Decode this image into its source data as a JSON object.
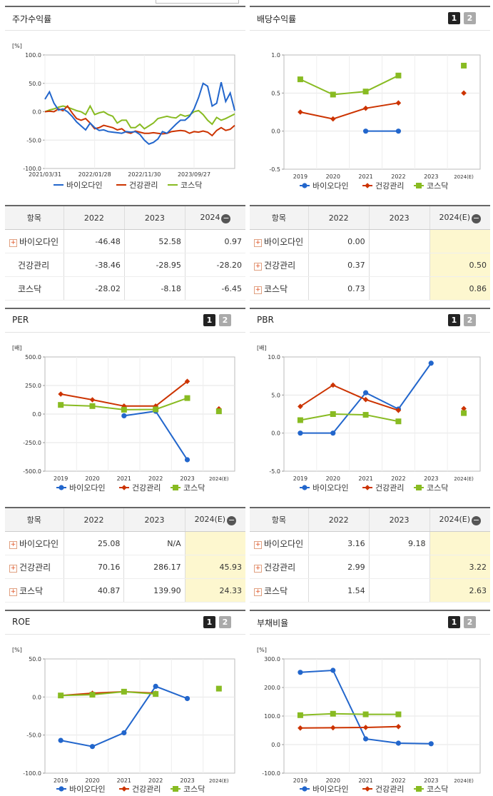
{
  "legend": [
    "바이오다인",
    "건강관리",
    "코스닥"
  ],
  "colors": {
    "바이오다인": "#2266cc",
    "건강관리": "#cc3300",
    "코스닥": "#88bb22"
  },
  "icons": {
    "expand": "plus-box-icon",
    "collapse": "minus-circle-icon"
  },
  "panels": {
    "stock": {
      "title": "주가수익률",
      "unit": "[%]"
    },
    "div": {
      "title": "배당수익률",
      "btn1": "1",
      "btn2": "2"
    },
    "per": {
      "title": "PER",
      "unit": "[배]",
      "btn1": "1",
      "btn2": "2"
    },
    "pbr": {
      "title": "PBR",
      "unit": "[배]",
      "btn1": "1",
      "btn2": "2"
    },
    "roe": {
      "title": "ROE",
      "unit": "[%]",
      "btn1": "1",
      "btn2": "2"
    },
    "debt": {
      "title": "부채비율",
      "unit": "[%]",
      "btn1": "1",
      "btn2": "2"
    }
  },
  "tables": {
    "stock": {
      "headers": [
        "항목",
        "2022",
        "2023",
        "2024"
      ],
      "rows": [
        {
          "label": "바이오다인",
          "plus": true,
          "values": [
            "-46.48",
            "52.58",
            "0.97"
          ]
        },
        {
          "label": "건강관리",
          "plus": false,
          "values": [
            "-38.46",
            "-28.95",
            "-28.20"
          ]
        },
        {
          "label": "코스닥",
          "plus": false,
          "values": [
            "-28.02",
            "-8.18",
            "-6.45"
          ]
        }
      ]
    },
    "div": {
      "headers": [
        "항목",
        "2022",
        "2023",
        "2024(E)"
      ],
      "rows": [
        {
          "label": "바이오다인",
          "plus": true,
          "values": [
            "0.00",
            "",
            ""
          ]
        },
        {
          "label": "건강관리",
          "plus": true,
          "values": [
            "0.37",
            "",
            "0.50"
          ]
        },
        {
          "label": "코스닥",
          "plus": true,
          "values": [
            "0.73",
            "",
            "0.86"
          ]
        }
      ]
    },
    "per": {
      "headers": [
        "항목",
        "2022",
        "2023",
        "2024(E)"
      ],
      "rows": [
        {
          "label": "바이오다인",
          "plus": true,
          "values": [
            "25.08",
            "N/A",
            ""
          ]
        },
        {
          "label": "건강관리",
          "plus": true,
          "values": [
            "70.16",
            "286.17",
            "45.93"
          ]
        },
        {
          "label": "코스닥",
          "plus": true,
          "values": [
            "40.87",
            "139.90",
            "24.33"
          ]
        }
      ]
    },
    "pbr": {
      "headers": [
        "항목",
        "2022",
        "2023",
        "2024(E)"
      ],
      "rows": [
        {
          "label": "바이오다인",
          "plus": true,
          "values": [
            "3.16",
            "9.18",
            ""
          ]
        },
        {
          "label": "건강관리",
          "plus": true,
          "values": [
            "2.99",
            "",
            "3.22"
          ]
        },
        {
          "label": "코스닥",
          "plus": true,
          "values": [
            "1.54",
            "",
            "2.63"
          ]
        }
      ]
    }
  },
  "chart_data": [
    {
      "id": "stock",
      "type": "line",
      "title": "주가수익률",
      "ylabel": "[%]",
      "ylim": [
        -100,
        100
      ],
      "yticks": [
        "100.0",
        "50.0",
        "0.0",
        "-50.0",
        "-100.0"
      ],
      "x_ticks": [
        "2021/03/31",
        "2022/01/28",
        "2022/11/30",
        "2023/09/27"
      ],
      "series": [
        {
          "name": "바이오다인",
          "values": [
            22,
            35,
            15,
            3,
            5,
            0,
            -8,
            -18,
            -25,
            -32,
            -20,
            -28,
            -33,
            -32,
            -35,
            -36,
            -37,
            -38,
            -35,
            -36,
            -35,
            -40,
            -50,
            -57,
            -54,
            -48,
            -35,
            -38,
            -30,
            -22,
            -15,
            -15,
            -8,
            5,
            25,
            50,
            45,
            10,
            15,
            52,
            18,
            33,
            2
          ]
        },
        {
          "name": "건강관리",
          "values": [
            0,
            1,
            0,
            5,
            2,
            10,
            -2,
            -12,
            -15,
            -12,
            -20,
            -30,
            -28,
            -24,
            -26,
            -28,
            -32,
            -30,
            -36,
            -38,
            -34,
            -36,
            -38,
            -38,
            -37,
            -38,
            -39,
            -38,
            -35,
            -34,
            -33,
            -34,
            -38,
            -35,
            -36,
            -34,
            -36,
            -42,
            -33,
            -28,
            -33,
            -31,
            -24
          ]
        },
        {
          "name": "코스닥",
          "values": [
            0,
            3,
            5,
            8,
            10,
            8,
            5,
            2,
            0,
            -5,
            10,
            -5,
            -2,
            0,
            -5,
            -8,
            -20,
            -15,
            -15,
            -28,
            -28,
            -22,
            -30,
            -25,
            -20,
            -12,
            -10,
            -8,
            -10,
            -11,
            -5,
            -8,
            -6,
            0,
            2,
            -5,
            -15,
            -22,
            -10,
            -15,
            -12,
            -8,
            -4
          ]
        }
      ]
    },
    {
      "id": "div",
      "type": "line",
      "title": "배당수익률",
      "ylim": [
        -0.5,
        1.0
      ],
      "yticks": [
        "1.0",
        "0.5",
        "0.0",
        "-0.5"
      ],
      "categories": [
        "2019",
        "2020",
        "2021",
        "2022",
        "2023",
        "2024(E)"
      ],
      "series": [
        {
          "name": "바이오다인",
          "values": [
            null,
            null,
            0.0,
            0.0,
            null,
            null
          ]
        },
        {
          "name": "건강관리",
          "values": [
            0.25,
            0.16,
            0.3,
            0.37,
            null,
            0.5
          ]
        },
        {
          "name": "코스닥",
          "values": [
            0.68,
            0.48,
            0.52,
            0.73,
            null,
            0.86
          ]
        }
      ]
    },
    {
      "id": "per",
      "type": "line",
      "title": "PER",
      "ylabel": "[배]",
      "ylim": [
        -500,
        500
      ],
      "yticks": [
        "500.0",
        "250.0",
        "0.0",
        "-250.0",
        "-500.0"
      ],
      "categories": [
        "2019",
        "2020",
        "2021",
        "2022",
        "2023",
        "2024(E)"
      ],
      "series": [
        {
          "name": "바이오다인",
          "values": [
            null,
            null,
            -15,
            25.08,
            -400,
            null
          ]
        },
        {
          "name": "건강관리",
          "values": [
            175,
            125,
            70,
            70.16,
            286.17,
            45.93
          ]
        },
        {
          "name": "코스닥",
          "values": [
            80,
            70,
            38,
            40.87,
            139.9,
            24.33
          ]
        }
      ]
    },
    {
      "id": "pbr",
      "type": "line",
      "title": "PBR",
      "ylabel": "[배]",
      "ylim": [
        -5,
        10
      ],
      "yticks": [
        "10.0",
        "5.0",
        "0.0",
        "-5.0"
      ],
      "categories": [
        "2019",
        "2020",
        "2021",
        "2022",
        "2023",
        "2024(E)"
      ],
      "series": [
        {
          "name": "바이오다인",
          "values": [
            0.0,
            0.0,
            5.3,
            3.16,
            9.18,
            null
          ]
        },
        {
          "name": "건강관리",
          "values": [
            3.5,
            6.3,
            4.4,
            2.99,
            null,
            3.22
          ]
        },
        {
          "name": "코스닥",
          "values": [
            1.7,
            2.5,
            2.4,
            1.54,
            null,
            2.63
          ]
        }
      ]
    },
    {
      "id": "roe",
      "type": "line",
      "title": "ROE",
      "ylabel": "[%]",
      "ylim": [
        -100,
        50
      ],
      "yticks": [
        "50.0",
        "0.0",
        "-50.0",
        "-100.0"
      ],
      "categories": [
        "2019",
        "2020",
        "2021",
        "2022",
        "2023",
        "2024(E)"
      ],
      "series": [
        {
          "name": "바이오다인",
          "values": [
            -57,
            -65,
            -47,
            14,
            -2,
            null
          ]
        },
        {
          "name": "건강관리",
          "values": [
            2,
            5,
            7,
            5,
            null,
            11
          ]
        },
        {
          "name": "코스닥",
          "values": [
            2,
            3,
            7,
            4,
            null,
            11
          ]
        }
      ]
    },
    {
      "id": "debt",
      "type": "line",
      "title": "부채비율",
      "ylabel": "[%]",
      "ylim": [
        -100,
        300
      ],
      "yticks": [
        "300.0",
        "200.0",
        "100.0",
        "0.0",
        "-100.0"
      ],
      "categories": [
        "2019",
        "2020",
        "2021",
        "2022",
        "2023",
        "2024(E)"
      ],
      "series": [
        {
          "name": "바이오다인",
          "values": [
            253,
            260,
            20,
            5,
            3,
            null
          ]
        },
        {
          "name": "건강관리",
          "values": [
            58,
            59,
            60,
            63,
            null,
            null
          ]
        },
        {
          "name": "코스닥",
          "values": [
            103,
            108,
            106,
            106,
            null,
            null
          ]
        }
      ]
    }
  ]
}
